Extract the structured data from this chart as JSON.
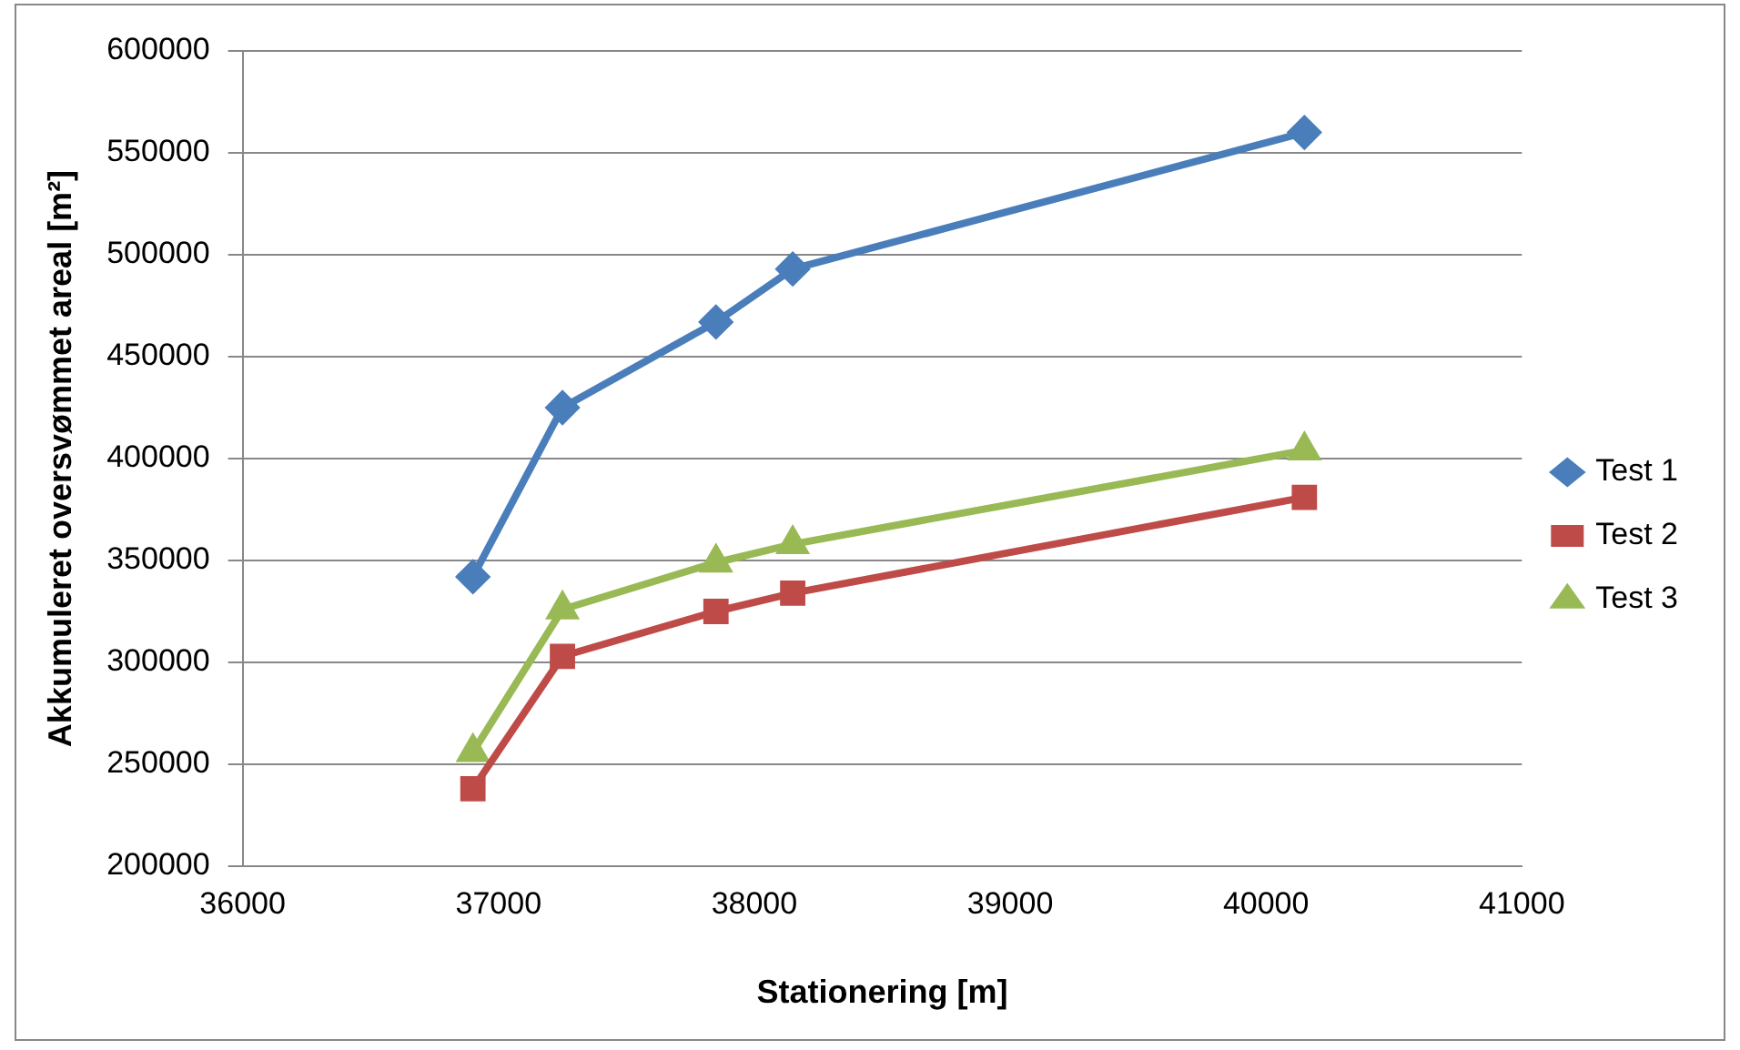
{
  "chart_data": {
    "type": "line",
    "xlabel": "Stationering [m]",
    "ylabel": "Akkumuleret oversvømmet areal [m²]",
    "x": [
      36900,
      37250,
      37850,
      38150,
      40150
    ],
    "series": [
      {
        "name": "Test 1",
        "color": "#4a7ebb",
        "marker": "diamond",
        "values": [
          342000,
          425000,
          467000,
          493000,
          560000
        ]
      },
      {
        "name": "Test 2",
        "color": "#be4b48",
        "marker": "square",
        "values": [
          238000,
          303000,
          325000,
          334000,
          381000
        ]
      },
      {
        "name": "Test 3",
        "color": "#98b954",
        "marker": "triangle",
        "values": [
          256000,
          326000,
          349000,
          358000,
          404000
        ]
      }
    ],
    "xlim": [
      36000,
      41000
    ],
    "xticks": [
      36000,
      37000,
      38000,
      39000,
      40000,
      41000
    ],
    "ylim": [
      200000,
      600000
    ],
    "yticks": [
      200000,
      250000,
      300000,
      350000,
      400000,
      450000,
      500000,
      550000,
      600000
    ],
    "grid": "y",
    "legend": "right",
    "line_style": "solid"
  }
}
